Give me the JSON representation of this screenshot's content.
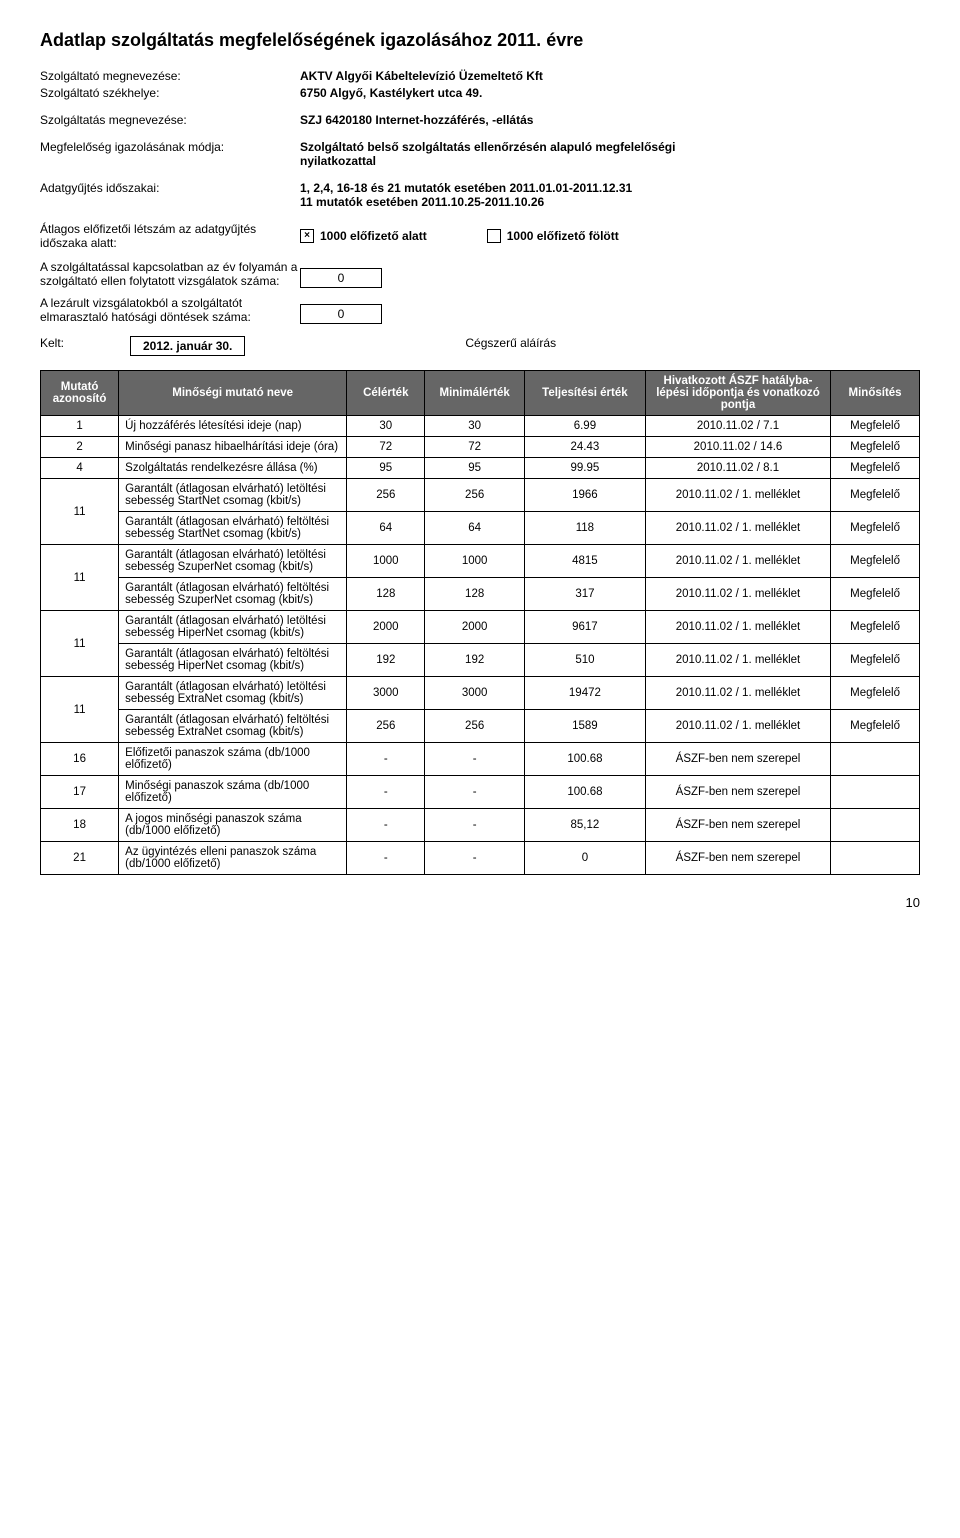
{
  "title": "Adatlap szolgáltatás megfelelőségének igazolásához 2011. évre",
  "info": [
    {
      "label": "Szolgáltató megnevezése:",
      "value": "AKTV Algyői Kábeltelevízió Üzemeltető Kft",
      "bold": true
    },
    {
      "label": "Szolgáltató székhelye:",
      "value": "6750 Algyő, Kastélykert utca 49.",
      "bold": true
    }
  ],
  "info2": [
    {
      "label": "Szolgáltatás megnevezése:",
      "value": "SZJ 6420180 Internet-hozzáférés, -ellátás",
      "bold": true
    }
  ],
  "info3": [
    {
      "label": "Megfelelőség igazolásának módja:",
      "value": "Szolgáltató belső szolgáltatás ellenőrzésén alapuló megfelelőségi nyilatkozattal",
      "bold": true
    }
  ],
  "info4": [
    {
      "label": "Adatgyűjtés időszakai:",
      "value": "1, 2,4, 16-18 és 21 mutatók esetében 2011.01.01-2011.12.31\n11 mutatók esetében 2011.10.25-2011.10.26",
      "bold": true
    }
  ],
  "subscriber_label": "Átlagos előfizetői létszám az adatgyűjtés időszaka alatt:",
  "checkbox_under": {
    "checked": true,
    "label": "1000 előfizető alatt"
  },
  "checkbox_over": {
    "checked": false,
    "label": "1000 előfizető fölött"
  },
  "count1": {
    "label": "A szolgáltatással kapcsolatban az év folyamán a szolgáltató ellen folytatott vizsgálatok száma:",
    "value": "0"
  },
  "count2": {
    "label": "A lezárult vizsgálatokból a szolgáltatót elmarasztaló hatósági döntések száma:",
    "value": "0"
  },
  "date_label": "Kelt:",
  "date_value": "2012. január 30.",
  "signature_label": "Cégszerű aláírás",
  "table": {
    "columns": [
      "Mutató azonosító",
      "Minőségi mutató neve",
      "Célérték",
      "Minimálérték",
      "Teljesítési érték",
      "Hivatkozott ÁSZF hatályba-lépési időpontja és vonatkozó pontja",
      "Minősítés"
    ],
    "header_bg": "#666666",
    "header_color": "#ffffff",
    "rows": [
      {
        "id": "1",
        "name": "Új hozzáférés létesítési ideje (nap)",
        "target": "30",
        "min": "30",
        "actual": "6.99",
        "ref": "2010.11.02 / 7.1",
        "rating": "Megfelelő",
        "rowspan": 1
      },
      {
        "id": "2",
        "name": "Minőségi panasz hibaelhárítási ideje (óra)",
        "target": "72",
        "min": "72",
        "actual": "24.43",
        "ref": "2010.11.02 / 14.6",
        "rating": "Megfelelő",
        "rowspan": 1
      },
      {
        "id": "4",
        "name": "Szolgáltatás rendelkezésre állása (%)",
        "target": "95",
        "min": "95",
        "actual": "99.95",
        "ref": "2010.11.02 / 8.1",
        "rating": "Megfelelő",
        "rowspan": 1
      },
      {
        "id": "11",
        "sub": [
          {
            "name": "Garantált (átlagosan elvárható) letöltési sebesség StartNet csomag (kbit/s)",
            "target": "256",
            "min": "256",
            "actual": "1966",
            "ref": "2010.11.02 / 1. melléklet",
            "rating": "Megfelelő"
          },
          {
            "name": "Garantált (átlagosan elvárható) feltöltési sebesség StartNet csomag (kbit/s)",
            "target": "64",
            "min": "64",
            "actual": "118",
            "ref": "2010.11.02 / 1. melléklet",
            "rating": "Megfelelő"
          }
        ]
      },
      {
        "id": "11",
        "sub": [
          {
            "name": "Garantált (átlagosan elvárható) letöltési sebesség SzuperNet csomag (kbit/s)",
            "target": "1000",
            "min": "1000",
            "actual": "4815",
            "ref": "2010.11.02 / 1. melléklet",
            "rating": "Megfelelő"
          },
          {
            "name": "Garantált (átlagosan elvárható) feltöltési sebesség SzuperNet csomag (kbit/s)",
            "target": "128",
            "min": "128",
            "actual": "317",
            "ref": "2010.11.02 / 1. melléklet",
            "rating": "Megfelelő"
          }
        ]
      },
      {
        "id": "11",
        "sub": [
          {
            "name": "Garantált (átlagosan elvárható) letöltési sebesség HiperNet csomag (kbit/s)",
            "target": "2000",
            "min": "2000",
            "actual": "9617",
            "ref": "2010.11.02 / 1. melléklet",
            "rating": "Megfelelő"
          },
          {
            "name": "Garantált (átlagosan elvárható) feltöltési sebesség HiperNet csomag (kbit/s)",
            "target": "192",
            "min": "192",
            "actual": "510",
            "ref": "2010.11.02 / 1. melléklet",
            "rating": "Megfelelő"
          }
        ]
      },
      {
        "id": "11",
        "sub": [
          {
            "name": "Garantált (átlagosan elvárható) letöltési sebesség ExtraNet csomag (kbit/s)",
            "target": "3000",
            "min": "3000",
            "actual": "19472",
            "ref": "2010.11.02 / 1. melléklet",
            "rating": "Megfelelő"
          },
          {
            "name": "Garantált (átlagosan elvárható) feltöltési sebesség ExtraNet csomag (kbit/s)",
            "target": "256",
            "min": "256",
            "actual": "1589",
            "ref": "2010.11.02 / 1. melléklet",
            "rating": "Megfelelő"
          }
        ]
      },
      {
        "id": "16",
        "name": "Előfizetői panaszok száma (db/1000 előfizető)",
        "target": "-",
        "min": "-",
        "actual": "100.68",
        "ref": "ÁSZF-ben nem szerepel",
        "rating": "",
        "rowspan": 1
      },
      {
        "id": "17",
        "name": "Minőségi panaszok száma (db/1000 előfizető)",
        "target": "-",
        "min": "-",
        "actual": "100.68",
        "ref": "ÁSZF-ben nem szerepel",
        "rating": "",
        "rowspan": 1
      },
      {
        "id": "18",
        "name": "A jogos minőségi panaszok száma (db/1000 előfizető)",
        "target": "-",
        "min": "-",
        "actual": "85,12",
        "ref": "ÁSZF-ben nem szerepel",
        "rating": "",
        "rowspan": 1
      },
      {
        "id": "21",
        "name": "Az ügyintézés elleni panaszok száma (db/1000 előfizető)",
        "target": "-",
        "min": "-",
        "actual": "0",
        "ref": "ÁSZF-ben nem szerepel",
        "rating": "",
        "rowspan": 1
      }
    ]
  },
  "page_number": "10"
}
